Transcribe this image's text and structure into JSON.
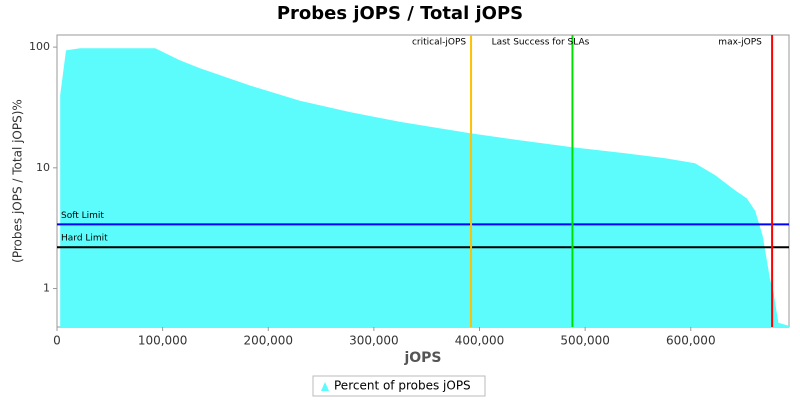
{
  "chart_data": {
    "type": "area",
    "title": "Probes jOPS / Total jOPS",
    "x_label": "jOPS",
    "y_label": "(Probes jOPS / Total jOPS)%",
    "x": [
      3000,
      8500,
      22000,
      93000,
      116000,
      135000,
      183000,
      230000,
      277000,
      325000,
      392000,
      438000,
      488000,
      538000,
      576000,
      604000,
      623000,
      642000,
      653000,
      661000,
      668000,
      675000,
      678000,
      683000,
      693000
    ],
    "series": [
      {
        "name": "Percent of probes jOPS",
        "color": "#5cfcfc",
        "values": [
          40,
          94,
          98,
          98,
          78,
          67,
          48,
          36,
          29,
          24,
          19.3,
          16.9,
          14.8,
          13.2,
          12,
          10.9,
          8.7,
          6.5,
          5.6,
          4.4,
          2.75,
          1.2,
          0.96,
          0.52,
          0.49
        ]
      }
    ],
    "xlim": [
      0,
      693000
    ],
    "xticks": [
      0,
      {
        "value": 100000,
        "label": "100,000"
      },
      {
        "value": 200000,
        "label": "200,000"
      },
      {
        "value": 300000,
        "label": "300,000"
      },
      {
        "value": 400000,
        "label": "400,000"
      },
      {
        "value": 500000,
        "label": "500,000"
      },
      {
        "value": 600000,
        "label": "600,000"
      }
    ],
    "ylim": [
      0.48,
      126
    ],
    "yticks": [
      1,
      10,
      100
    ],
    "log_y": true,
    "vertical_markers": [
      {
        "label": "critical-jOPS",
        "value": 392000,
        "color": "#ffc000"
      },
      {
        "label": "Last Success for SLAs",
        "value": 488000,
        "color": "#00e000"
      },
      {
        "label": "max-jOPS",
        "value": 677000,
        "color": "#ff0000"
      }
    ],
    "horizontal_markers": [
      {
        "label": "Soft Limit",
        "value": 3.4,
        "color": "#0000ff"
      },
      {
        "label": "Hard Limit",
        "value": 2.2,
        "color": "#000000"
      }
    ],
    "legend": "bottom"
  }
}
